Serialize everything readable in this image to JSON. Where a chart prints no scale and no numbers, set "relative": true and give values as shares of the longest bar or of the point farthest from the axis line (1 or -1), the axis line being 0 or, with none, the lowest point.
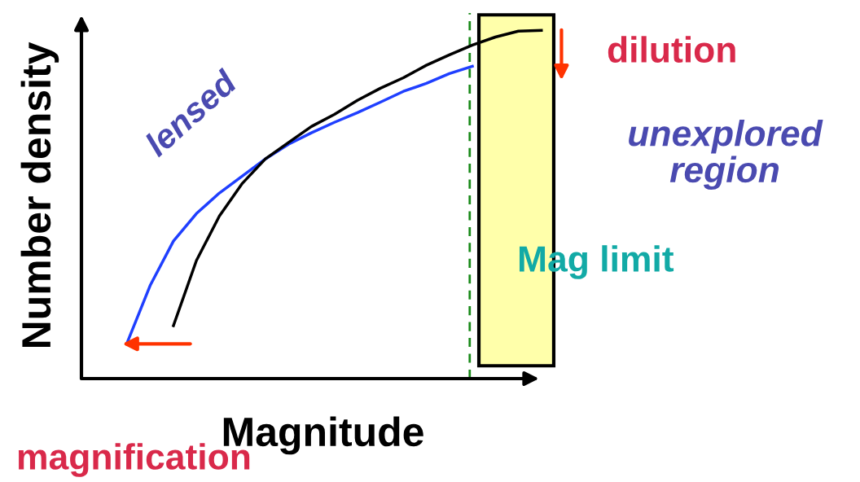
{
  "chart_data": {
    "type": "line",
    "relative": true,
    "xlabel": "Magnitude",
    "ylabel": "Number density",
    "categories": [
      null,
      null,
      null,
      null,
      null,
      null,
      null,
      null,
      null,
      null,
      null,
      null,
      null,
      null,
      null,
      null,
      null,
      null,
      null,
      null,
      null
    ],
    "series": [
      {
        "name": "lensed",
        "color": "#1f3fff",
        "values": [
          null,
          null,
          0.105,
          0.269,
          0.395,
          0.474,
          0.533,
          0.582,
          0.631,
          0.673,
          0.706,
          0.736,
          0.764,
          0.794,
          0.825,
          0.848,
          0.876,
          0.897,
          null,
          null,
          null
        ]
      },
      {
        "color": "#000000",
        "values": [
          null,
          null,
          null,
          null,
          0.152,
          0.339,
          0.467,
          0.561,
          0.631,
          0.678,
          0.724,
          0.759,
          0.799,
          0.834,
          0.864,
          0.9,
          0.93,
          0.958,
          0.981,
          0.998,
          1
        ]
      }
    ],
    "annotations": [
      "dilution",
      "unexplored region",
      "Mag limit",
      "magnification"
    ]
  }
}
